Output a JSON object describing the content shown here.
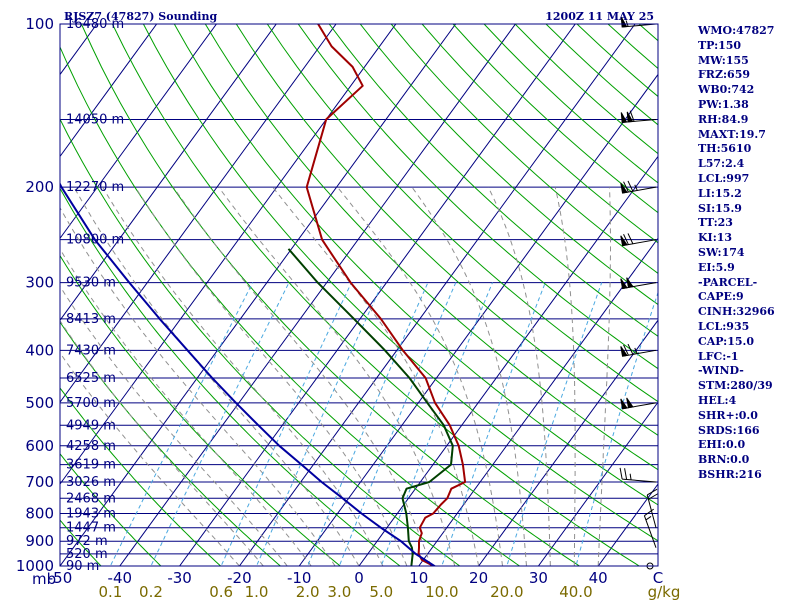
{
  "header": {
    "station": "RJSZ7 (47827) Sounding",
    "time": "1200Z 11 MAY 25"
  },
  "colors": {
    "frame": "#000080",
    "isobar": "#000080",
    "isotherm": "#000080",
    "dry_adiabat": "#00a000",
    "moist_adiabat": "#909090",
    "mixing_ratio": "#4aa8e0",
    "temperature": "#a00000",
    "dewpoint": "#004000",
    "parcel": "#0000a0",
    "wind": "#000000"
  },
  "indices": [
    "WMO:47827",
    "TP:150",
    "MW:155",
    "FRZ:659",
    "WB0:742",
    "PW:1.38",
    "RH:84.9",
    "MAXT:19.7",
    "TH:5610",
    "L57:2.4",
    "LCL:997",
    "LI:15.2",
    "SI:15.9",
    "TT:23",
    "KI:13",
    "SW:174",
    "EI:5.9",
    "-PARCEL-",
    "CAPE:9",
    "CINH:32966",
    "LCL:935",
    "CAP:15.0",
    "LFC:-1",
    "-WIND-",
    "STM:280/39",
    "HEL:4",
    "SHR+:0.0",
    "SRDS:166",
    "EHI:0.0",
    "BRN:0.0",
    "BSHR:216"
  ],
  "chart_data": {
    "type": "line",
    "diagram": "skew-t log-p",
    "title": "RJSZ7 (47827) Sounding",
    "subtitle": "1200Z 11 MAY 25",
    "xlabel": "",
    "ylabel": "mb",
    "xunit": "C",
    "mixing_ratio_unit": "g/kg",
    "ylim": [
      1000,
      100
    ],
    "xlim": [
      -50,
      50
    ],
    "pressure_ticks": [
      100,
      200,
      300,
      400,
      500,
      600,
      700,
      800,
      900,
      1000
    ],
    "temperature_ticks": [
      -50,
      -40,
      -30,
      -20,
      -10,
      0,
      10,
      20,
      30,
      40,
      50
    ],
    "temperature_tick_labels": [
      "-50",
      "-40",
      "-30",
      "-20",
      "-10",
      "0",
      "10",
      "20",
      "30",
      "40",
      "C"
    ],
    "mixing_ratio_ticks": [
      0.1,
      0.2,
      0.6,
      1.0,
      2.0,
      3.0,
      5.0,
      10.0,
      20.0,
      40.0
    ],
    "mixing_ratio_tick_labels": [
      "0.1",
      "0.2",
      "0.6",
      "1.0",
      "2.0",
      "3.0",
      "5.0",
      "10.0",
      "20.0",
      "40.0"
    ],
    "height_labels": [
      {
        "p": 100,
        "h": "16480 m"
      },
      {
        "p": 150,
        "h": "14050 m"
      },
      {
        "p": 200,
        "h": "12270 m"
      },
      {
        "p": 250,
        "h": "10800 m"
      },
      {
        "p": 300,
        "h": "9530 m"
      },
      {
        "p": 350,
        "h": "8413 m"
      },
      {
        "p": 400,
        "h": "7430 m"
      },
      {
        "p": 450,
        "h": "6525 m"
      },
      {
        "p": 500,
        "h": "5700 m"
      },
      {
        "p": 550,
        "h": "4949 m"
      },
      {
        "p": 600,
        "h": "4258 m"
      },
      {
        "p": 650,
        "h": "3619 m"
      },
      {
        "p": 700,
        "h": "3026 m"
      },
      {
        "p": 750,
        "h": "2468 m"
      },
      {
        "p": 800,
        "h": "1943 m"
      },
      {
        "p": 850,
        "h": "1447 m"
      },
      {
        "p": 900,
        "h": "972 m"
      },
      {
        "p": 950,
        "h": "520 m"
      },
      {
        "p": 1000,
        "h": "90 m"
      }
    ],
    "series": [
      {
        "key": "temperature",
        "points": [
          [
            1010,
            13.5
          ],
          [
            975,
            9.8
          ],
          [
            950,
            8.5
          ],
          [
            925,
            7.8
          ],
          [
            900,
            7.0
          ],
          [
            870,
            6.5
          ],
          [
            850,
            5.5
          ],
          [
            815,
            5.2
          ],
          [
            800,
            6.0
          ],
          [
            770,
            6.2
          ],
          [
            750,
            6.5
          ],
          [
            720,
            6.0
          ],
          [
            700,
            7.5
          ],
          [
            650,
            5.0
          ],
          [
            600,
            2.0
          ],
          [
            550,
            -2.0
          ],
          [
            500,
            -7.2
          ],
          [
            450,
            -11.8
          ],
          [
            400,
            -19.0
          ],
          [
            350,
            -26.5
          ],
          [
            300,
            -36.0
          ],
          [
            250,
            -46.0
          ],
          [
            200,
            -55.0
          ],
          [
            150,
            -60.0
          ],
          [
            130,
            -58.0
          ],
          [
            120,
            -62.0
          ],
          [
            110,
            -68.0
          ],
          [
            100,
            -73.0
          ]
        ]
      },
      {
        "key": "dewpoint",
        "points": [
          [
            1010,
            9.0
          ],
          [
            950,
            7.5
          ],
          [
            925,
            6.6
          ],
          [
            900,
            5.3
          ],
          [
            850,
            3.5
          ],
          [
            800,
            1.5
          ],
          [
            750,
            -1.0
          ],
          [
            720,
            -1.5
          ],
          [
            700,
            1.5
          ],
          [
            650,
            3.0
          ],
          [
            600,
            1.0
          ],
          [
            550,
            -3.0
          ],
          [
            500,
            -8.5
          ],
          [
            450,
            -14.5
          ],
          [
            400,
            -22.0
          ],
          [
            350,
            -31.0
          ],
          [
            300,
            -41.5
          ],
          [
            260,
            -50.5
          ]
        ]
      },
      {
        "key": "parcel",
        "points": [
          [
            1010,
            13.5
          ],
          [
            950,
            8.0
          ],
          [
            900,
            4.0
          ],
          [
            850,
            -1.0
          ],
          [
            800,
            -6.0
          ],
          [
            750,
            -11.0
          ],
          [
            700,
            -16.5
          ],
          [
            650,
            -22.0
          ],
          [
            600,
            -28.0
          ],
          [
            550,
            -34.0
          ],
          [
            500,
            -40.5
          ],
          [
            450,
            -47.5
          ],
          [
            400,
            -55.0
          ],
          [
            350,
            -63.5
          ],
          [
            300,
            -73.0
          ],
          [
            250,
            -84.0
          ],
          [
            200,
            -96.0
          ],
          [
            150,
            -110.0
          ],
          [
            120,
            -118.0
          ]
        ]
      }
    ],
    "wind_barbs": [
      {
        "p": 100,
        "dir": 265,
        "spd": 55
      },
      {
        "p": 150,
        "dir": 265,
        "spd": 110
      },
      {
        "p": 200,
        "dir": 260,
        "spd": 75
      },
      {
        "p": 250,
        "dir": 260,
        "spd": 70
      },
      {
        "p": 300,
        "dir": 260,
        "spd": 100
      },
      {
        "p": 400,
        "dir": 260,
        "spd": 75
      },
      {
        "p": 500,
        "dir": 260,
        "spd": 100
      },
      {
        "p": 700,
        "dir": 275,
        "spd": 25
      },
      {
        "p": 850,
        "dir": 345,
        "spd": 20
      },
      {
        "p": 925,
        "dir": 340,
        "spd": 15
      },
      {
        "p": 1000,
        "dir": 0,
        "spd": 0
      }
    ]
  }
}
